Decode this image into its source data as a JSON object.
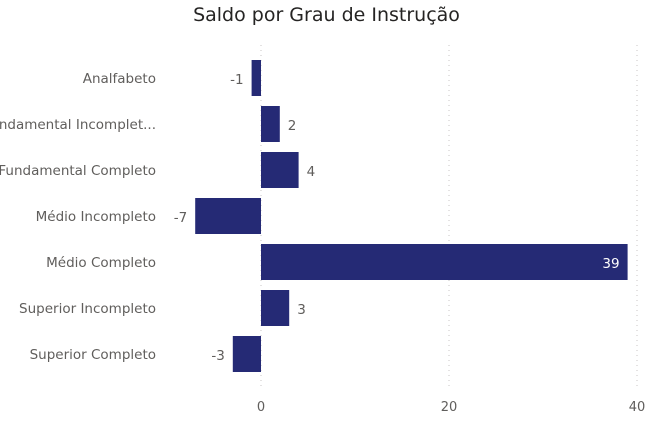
{
  "chart_data": {
    "type": "bar",
    "orientation": "horizontal",
    "title": "Saldo por Grau de Instrução",
    "xlabel": "",
    "ylabel": "",
    "categories": [
      "Analfabeto",
      "Fundamental Incomplet...",
      "Fundamental Completo",
      "Médio Incompleto",
      "Médio Completo",
      "Superior Incompleto",
      "Superior Completo"
    ],
    "values": [
      -1,
      2,
      4,
      -7,
      39,
      3,
      -3
    ],
    "data_labels": [
      "-1",
      "2",
      "4",
      "-7",
      "39",
      "3",
      "-3"
    ],
    "xlim": [
      -7,
      40
    ],
    "xticks": [
      0,
      20,
      40
    ],
    "xtick_labels": [
      "0",
      "20",
      "40"
    ],
    "grid": "vertical dotted",
    "bar_color": "#252A75",
    "label_color": "#605E5C",
    "inside_label_color": "#FFFFFF"
  }
}
